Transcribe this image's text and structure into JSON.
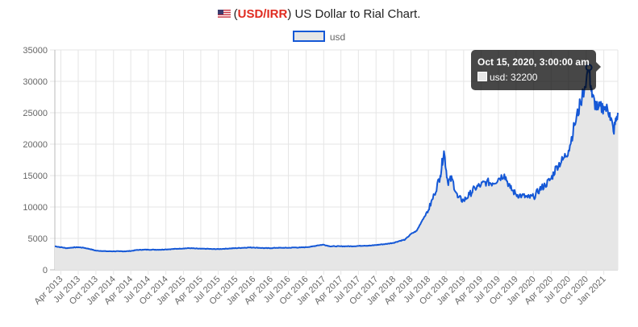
{
  "header": {
    "flag_icon": "us-flag-icon",
    "open_paren": "(",
    "pair": "USD/IRR",
    "rest": ") US Dollar to Rial Chart."
  },
  "colors": {
    "accent": "#e02b20",
    "line": "#1558d6",
    "fill": "#e6e6e6"
  },
  "tooltip": {
    "title": "Oct 15, 2020, 3:00:00 am",
    "label": "usd: 32200"
  },
  "chart_data": {
    "type": "area",
    "title": "(USD/IRR) US Dollar to Rial Chart.",
    "legend": [
      {
        "name": "usd",
        "position": "top-center"
      }
    ],
    "xlabel": "",
    "ylabel": "",
    "ylim": [
      0,
      35000
    ],
    "yticks": [
      0,
      5000,
      10000,
      15000,
      20000,
      25000,
      30000,
      35000
    ],
    "grid": true,
    "x_ticks": [
      "Apr 2013",
      "Jul 2013",
      "Oct 2013",
      "Jan 2014",
      "Apr 2014",
      "Jul 2014",
      "Oct 2014",
      "Jan 2015",
      "Apr 2015",
      "Jul 2015",
      "Oct 2015",
      "Jan 2016",
      "Apr 2016",
      "Jul 2016",
      "Oct 2016",
      "Jan 2017",
      "Apr 2017",
      "Jul 2017",
      "Oct 2017",
      "Jan 2018",
      "Apr 2018",
      "Jul 2018",
      "Oct 2018",
      "Jan 2019",
      "Apr 2019",
      "Jul 2019",
      "Oct 2019",
      "Jan 2020",
      "Apr 2020",
      "Jul 2020",
      "Oct 2020",
      "Jan 2021"
    ],
    "x_start": "2013-03-01",
    "x_end": "2021-03-15",
    "series": [
      {
        "name": "usd",
        "points": [
          [
            "2013-03-01",
            3750
          ],
          [
            "2013-04-01",
            3600
          ],
          [
            "2013-05-01",
            3450
          ],
          [
            "2013-06-01",
            3550
          ],
          [
            "2013-07-01",
            3600
          ],
          [
            "2013-08-01",
            3500
          ],
          [
            "2013-09-01",
            3300
          ],
          [
            "2013-10-01",
            3050
          ],
          [
            "2013-11-01",
            3000
          ],
          [
            "2013-12-01",
            2950
          ],
          [
            "2014-01-01",
            2950
          ],
          [
            "2014-02-01",
            2950
          ],
          [
            "2014-03-01",
            2950
          ],
          [
            "2014-04-01",
            3000
          ],
          [
            "2014-05-01",
            3150
          ],
          [
            "2014-06-01",
            3200
          ],
          [
            "2014-07-01",
            3200
          ],
          [
            "2014-08-01",
            3200
          ],
          [
            "2014-09-01",
            3200
          ],
          [
            "2014-10-01",
            3250
          ],
          [
            "2014-11-01",
            3300
          ],
          [
            "2014-12-01",
            3350
          ],
          [
            "2015-01-01",
            3400
          ],
          [
            "2015-02-01",
            3450
          ],
          [
            "2015-03-01",
            3400
          ],
          [
            "2015-04-01",
            3350
          ],
          [
            "2015-05-01",
            3350
          ],
          [
            "2015-06-01",
            3300
          ],
          [
            "2015-07-01",
            3300
          ],
          [
            "2015-08-01",
            3350
          ],
          [
            "2015-09-01",
            3400
          ],
          [
            "2015-10-01",
            3450
          ],
          [
            "2015-11-01",
            3500
          ],
          [
            "2015-12-01",
            3550
          ],
          [
            "2016-01-01",
            3550
          ],
          [
            "2016-02-01",
            3500
          ],
          [
            "2016-03-01",
            3450
          ],
          [
            "2016-04-01",
            3450
          ],
          [
            "2016-05-01",
            3500
          ],
          [
            "2016-06-01",
            3500
          ],
          [
            "2016-07-01",
            3500
          ],
          [
            "2016-08-01",
            3550
          ],
          [
            "2016-09-01",
            3550
          ],
          [
            "2016-10-01",
            3600
          ],
          [
            "2016-11-01",
            3700
          ],
          [
            "2016-12-01",
            3900
          ],
          [
            "2017-01-01",
            4000
          ],
          [
            "2017-02-01",
            3750
          ],
          [
            "2017-03-01",
            3750
          ],
          [
            "2017-04-01",
            3750
          ],
          [
            "2017-05-01",
            3750
          ],
          [
            "2017-06-01",
            3750
          ],
          [
            "2017-07-01",
            3800
          ],
          [
            "2017-08-01",
            3850
          ],
          [
            "2017-09-01",
            3850
          ],
          [
            "2017-10-01",
            3950
          ],
          [
            "2017-11-01",
            4050
          ],
          [
            "2017-12-01",
            4150
          ],
          [
            "2018-01-01",
            4300
          ],
          [
            "2018-02-01",
            4600
          ],
          [
            "2018-03-01",
            4800
          ],
          [
            "2018-04-01",
            5700
          ],
          [
            "2018-05-01",
            6200
          ],
          [
            "2018-06-01",
            8000
          ],
          [
            "2018-07-01",
            9500
          ],
          [
            "2018-08-01",
            12000
          ],
          [
            "2018-09-01",
            15000
          ],
          [
            "2018-09-20",
            18900
          ],
          [
            "2018-10-10",
            14000
          ],
          [
            "2018-11-01",
            14500
          ],
          [
            "2018-12-01",
            11500
          ],
          [
            "2019-01-01",
            11000
          ],
          [
            "2019-02-01",
            12000
          ],
          [
            "2019-03-01",
            13000
          ],
          [
            "2019-04-01",
            13500
          ],
          [
            "2019-05-01",
            14000
          ],
          [
            "2019-06-01",
            13800
          ],
          [
            "2019-07-01",
            14500
          ],
          [
            "2019-08-01",
            15200
          ],
          [
            "2019-09-01",
            13000
          ],
          [
            "2019-10-01",
            12000
          ],
          [
            "2019-11-01",
            11800
          ],
          [
            "2019-12-01",
            11500
          ],
          [
            "2020-01-01",
            11600
          ],
          [
            "2020-02-01",
            12800
          ],
          [
            "2020-03-01",
            13500
          ],
          [
            "2020-04-01",
            14500
          ],
          [
            "2020-05-01",
            16500
          ],
          [
            "2020-06-01",
            17500
          ],
          [
            "2020-07-01",
            19000
          ],
          [
            "2020-08-01",
            23000
          ],
          [
            "2020-09-01",
            26500
          ],
          [
            "2020-10-15",
            32200
          ],
          [
            "2020-11-01",
            27500
          ],
          [
            "2020-12-01",
            25500
          ],
          [
            "2021-01-01",
            26000
          ],
          [
            "2021-02-01",
            25000
          ],
          [
            "2021-02-20",
            22000
          ],
          [
            "2021-03-15",
            25000
          ]
        ]
      }
    ]
  }
}
